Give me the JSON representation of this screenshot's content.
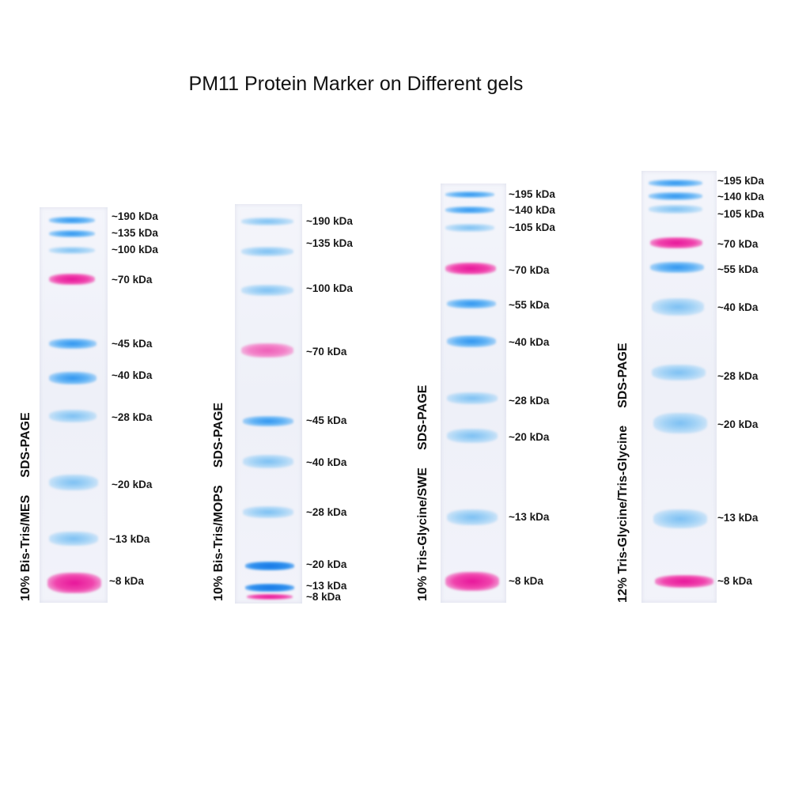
{
  "title": "PM11 Protein Marker on Different gels",
  "gels": [
    {
      "condition": "10% Bis-Tris/MES",
      "method": "SDS-PAGE",
      "markers": [
        "~190 kDa",
        "~135 kDa",
        "~100 kDa",
        "~70 kDa",
        "~45 kDa",
        "~40 kDa",
        "~28 kDa",
        "~20 kDa",
        "~13 kDa",
        "~8 kDa"
      ]
    },
    {
      "condition": "10% Bis-Tris/MOPS",
      "method": "SDS-PAGE",
      "markers": [
        "~190 kDa",
        "~135 kDa",
        "~100 kDa",
        "~70 kDa",
        "~45 kDa",
        "~40 kDa",
        "~28 kDa",
        "~20 kDa",
        "~13 kDa",
        "~8 kDa"
      ]
    },
    {
      "condition": "10% Tris-Glycine/SWE",
      "method": "SDS-PAGE",
      "markers": [
        "~195 kDa",
        "~140 kDa",
        "~105 kDa",
        "~70 kDa",
        "~55 kDa",
        "~40 kDa",
        "~28 kDa",
        "~20 kDa",
        "~13 kDa",
        "~8 kDa"
      ]
    },
    {
      "condition": "12% Tris-Glycine/Tris-Glycine",
      "method": "SDS-PAGE",
      "markers": [
        "~195 kDa",
        "~140 kDa",
        "~105 kDa",
        "~70 kDa",
        "~55 kDa",
        "~40 kDa",
        "~28 kDa",
        "~20 kDa",
        "~13 kDa",
        "~8 kDa"
      ]
    }
  ],
  "colors": {
    "blue_band": "#2f95f0",
    "pink_band": "#e7159a"
  }
}
